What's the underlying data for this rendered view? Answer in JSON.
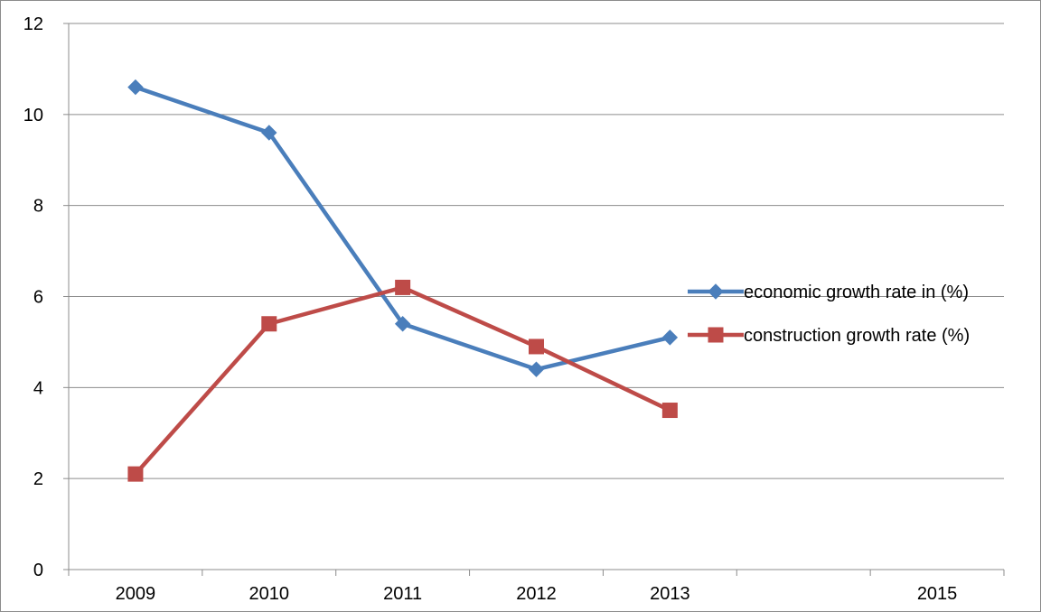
{
  "chart_data": {
    "type": "line",
    "title": "",
    "xlabel": "",
    "ylabel": "",
    "x_ticks": [
      "2009",
      "2010",
      "2011",
      "2012",
      "2013",
      "",
      "2015"
    ],
    "y_ticks": [
      "0",
      "2",
      "4",
      "6",
      "8",
      "10",
      "12"
    ],
    "ylim": [
      0,
      12
    ],
    "grid": "horizontal major gridlines",
    "legend_position": "right",
    "series": [
      {
        "name": "economic growth rate in (%)",
        "marker": "diamond",
        "color": "#4a7ebb",
        "x": [
          "2009",
          "2010",
          "2011",
          "2012",
          "2013"
        ],
        "values": [
          10.6,
          9.6,
          5.4,
          4.4,
          5.1
        ]
      },
      {
        "name": "construction growth rate (%)",
        "marker": "square",
        "color": "#be4b48",
        "x": [
          "2009",
          "2010",
          "2011",
          "2012",
          "2013"
        ],
        "values": [
          2.1,
          5.4,
          6.2,
          4.9,
          3.5
        ]
      }
    ]
  }
}
